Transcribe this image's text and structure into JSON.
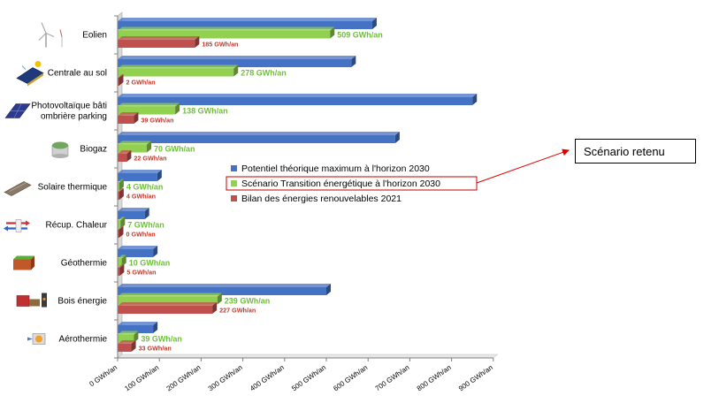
{
  "chart_data": {
    "type": "bar",
    "orientation": "horizontal",
    "categories": [
      "Eolien",
      "Centrale au sol",
      "Photovoltaïque bâti ombrière parking",
      "Biogaz",
      "Solaire thermique",
      "Récup. Chaleur",
      "Géothermie",
      "Bois énergie",
      "Aérothermie"
    ],
    "category_icons": [
      "wind-turbine-icon",
      "solar-farm-icon",
      "solar-panel-icon",
      "biogas-tank-icon",
      "solar-thermal-panel-icon",
      "heat-exchanger-icon",
      "geothermal-ground-icon",
      "wood-stove-icon",
      "heat-pump-icon"
    ],
    "series": [
      {
        "name": "Potentiel théorique maximum à l'horizon 2030",
        "color": "#4472C4",
        "values": [
          610,
          560,
          850,
          665,
          95,
          65,
          85,
          500,
          85
        ],
        "labels": [
          "",
          "",
          "",
          "",
          "",
          "",
          "",
          "",
          ""
        ]
      },
      {
        "name": "Scénario Transition énergétique à l'horizon 2030",
        "color": "#92D050",
        "label_color": "#6FBF3B",
        "values": [
          509,
          278,
          138,
          70,
          4,
          7,
          10,
          239,
          39
        ],
        "labels": [
          "509 GWh/an",
          "278 GWh/an",
          "138 GWh/an",
          "70 GWh/an",
          "4 GWh/an",
          "7 GWh/an",
          "10 GWh/an",
          "239 GWh/an",
          "39 GWh/an"
        ]
      },
      {
        "name": "Bilan des énergies renouvelables 2021",
        "color": "#C0504D",
        "label_color": "#C0392B",
        "values": [
          185,
          2,
          39,
          22,
          4,
          0,
          5,
          227,
          33
        ],
        "labels": [
          "185 GWh/an",
          "2 GWh/an",
          "39 GWh/an",
          "22 GWh/an",
          "4 GWh/an",
          "0 GWh/an",
          "5 GWh/an",
          "227 GWh/an",
          "33 GWh/an"
        ]
      }
    ],
    "x_ticks": [
      "0 GWh/an",
      "100 GWh/an",
      "200 GWh/an",
      "300 GWh/an",
      "400 GWh/an",
      "500 GWh/an",
      "600 GWh/an",
      "700 GWh/an",
      "800 GWh/an",
      "900 GWh/an"
    ],
    "xlim": [
      0,
      900
    ],
    "legend_position": "center-right",
    "highlighted_series": "Scénario Transition énergétique à l'horizon 2030",
    "grid": false
  },
  "annotation": {
    "text": "Scénario retenu",
    "arrow_color": "#E00000",
    "highlight_border_color": "#C00000"
  }
}
